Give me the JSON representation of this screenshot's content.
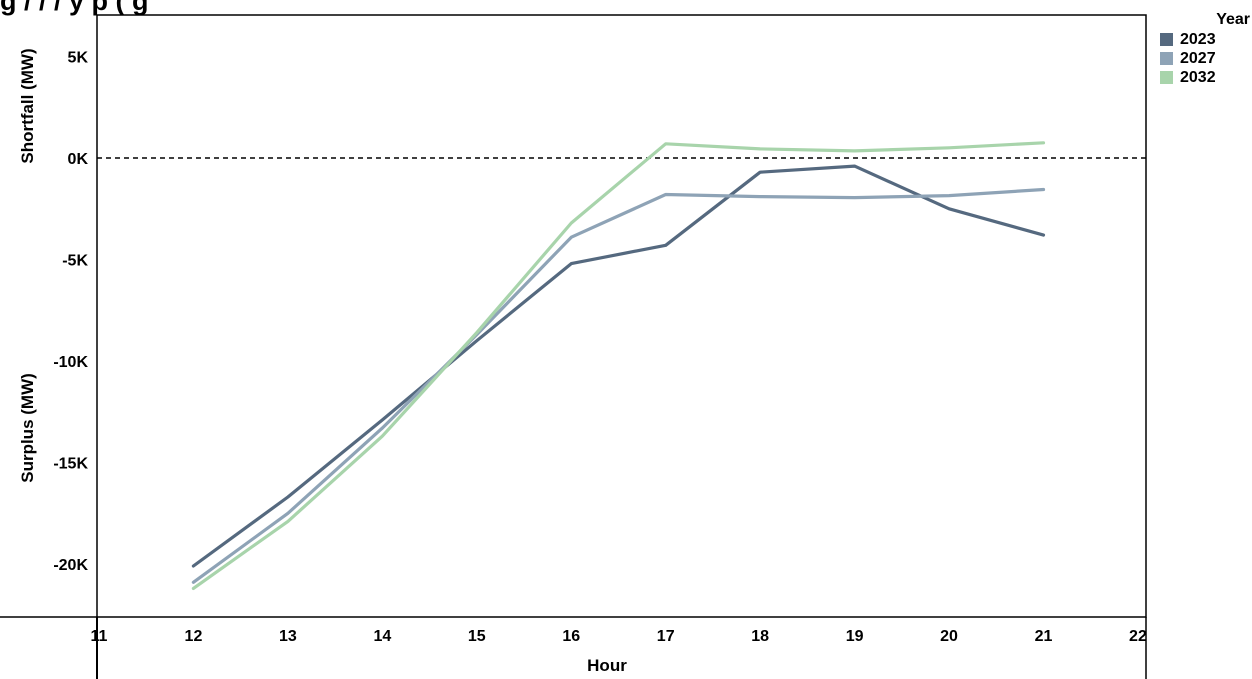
{
  "header": {
    "title_fragment": "g                    / /           /                    y    p                                         (         g"
  },
  "chart_data": {
    "type": "line",
    "title": "",
    "xlabel": "Hour",
    "ylabel_top": "Shortfall (MW)",
    "ylabel_bottom": "Surplus (MW)",
    "xlim": [
      11,
      22
    ],
    "ylim": [
      -22800,
      7500
    ],
    "x_ticks": [
      "11",
      "12",
      "13",
      "14",
      "15",
      "16",
      "17",
      "18",
      "19",
      "20",
      "21",
      "22"
    ],
    "y_ticks": [
      {
        "value": 5000,
        "label": "5K"
      },
      {
        "value": 0,
        "label": "0K"
      },
      {
        "value": -5000,
        "label": "-5K"
      },
      {
        "value": -10000,
        "label": "-10K"
      },
      {
        "value": -15000,
        "label": "-15K"
      },
      {
        "value": -20000,
        "label": "-20K"
      }
    ],
    "reference_line": {
      "y": 0,
      "style": "dashed"
    },
    "legend_title": "Year",
    "legend_position": "top-right",
    "series": [
      {
        "name": "2023",
        "color": "#55697f",
        "x": [
          12,
          13,
          14,
          15,
          16,
          17,
          18,
          19,
          20,
          21
        ],
        "y": [
          -20100,
          -16700,
          -12900,
          -9000,
          -5200,
          -4300,
          -700,
          -400,
          -2500,
          -3800
        ]
      },
      {
        "name": "2027",
        "color": "#8ea3b6",
        "x": [
          12,
          13,
          14,
          15,
          16,
          17,
          18,
          19,
          20,
          21
        ],
        "y": [
          -20900,
          -17500,
          -13300,
          -8700,
          -3900,
          -1800,
          -1900,
          -1950,
          -1850,
          -1550
        ]
      },
      {
        "name": "2032",
        "color": "#a8d4ab",
        "x": [
          12,
          13,
          14,
          15,
          16,
          17,
          18,
          19,
          20,
          21
        ],
        "y": [
          -21200,
          -17900,
          -13700,
          -8600,
          -3200,
          700,
          450,
          350,
          500,
          750
        ]
      }
    ]
  }
}
